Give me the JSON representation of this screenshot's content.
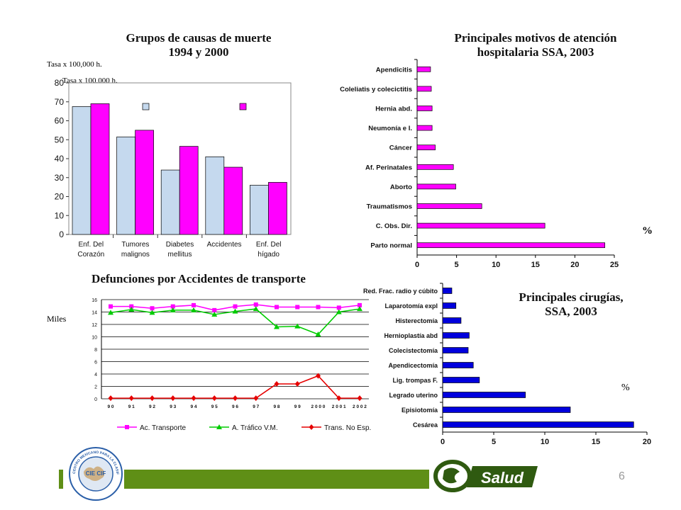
{
  "slide_number": "6",
  "brand": {
    "salud_label": "Salud",
    "seal_center": "CIE CIF",
    "seal_ring": "CENTRO MEXICANO PARA LA CLASIFICACIÓN DE ENFERMEDADES",
    "green": "#5f8f16",
    "dark_green": "#2f5a10"
  },
  "chart_data": [
    {
      "id": "causas",
      "type": "bar",
      "title_line1": "Grupos de causas de muerte",
      "title_line2": "1994 y 2000",
      "unit_label": "Tasa x 100,000 h.",
      "unit_label_dup": "Tasa x 100,000 h.",
      "categories": [
        [
          "Enf. Del",
          "Corazón"
        ],
        [
          "Tumores",
          "malignos"
        ],
        [
          "Diabetes",
          "mellitus"
        ],
        [
          "Accidentes",
          ""
        ],
        [
          "Enf. Del",
          "hígado"
        ]
      ],
      "series": [
        {
          "values": [
            67.5,
            51.5,
            34,
            41,
            26
          ],
          "color": "#c5d9ee"
        },
        {
          "values": [
            69,
            55,
            46.5,
            35.5,
            27.5
          ],
          "color": "#ff00ff"
        }
      ],
      "ylim": [
        0,
        80
      ],
      "yticks": [
        0,
        10,
        20,
        30,
        40,
        50,
        60,
        70,
        80
      ]
    },
    {
      "id": "motivos",
      "type": "bar",
      "orientation": "horizontal",
      "title_line1": "Principales motivos de atención",
      "title_line2": "hospitalaria SSA, 2003",
      "unit": "%",
      "categories": [
        "Apendicitis",
        "Coleliatis y colecictitis",
        "Hernia abd.",
        "Neumonía e I.",
        "Cáncer",
        "Af. Perinatales",
        "Aborto",
        "Traumatismos",
        "C. Obs. Dir.",
        "Parto normal"
      ],
      "values": [
        1.7,
        1.8,
        1.9,
        1.9,
        2.3,
        4.6,
        4.9,
        8.2,
        16.2,
        23.8
      ],
      "color": "#ff00ff",
      "xlim": [
        0,
        25
      ],
      "xticks": [
        0,
        5,
        10,
        15,
        20,
        25
      ]
    },
    {
      "id": "transporte",
      "type": "line",
      "title": "Defunciones por Accidentes de transporte",
      "unit_label": "Miles",
      "x": [
        "9 0",
        "9 1",
        "9 2",
        "9 3",
        "9 4",
        "9 5",
        "9 6",
        "9 7",
        "9 8",
        "9 9",
        "2 0 0 0",
        "2 0 0 1",
        "2 0 0 2"
      ],
      "series": [
        {
          "name": "Ac. Transporte",
          "values": [
            14.9,
            14.9,
            14.6,
            14.9,
            15.1,
            14.3,
            14.9,
            15.2,
            14.8,
            14.8,
            14.8,
            14.7,
            15.1
          ],
          "color": "#ff00ff",
          "marker": "square"
        },
        {
          "name": "A. Tráfico V.M.",
          "values": [
            13.9,
            14.4,
            13.9,
            14.3,
            14.3,
            13.6,
            14.1,
            14.5,
            11.6,
            11.7,
            10.4,
            14.0,
            14.5
          ],
          "color": "#00cc00",
          "marker": "triangle"
        },
        {
          "name": "Trans. No Esp.",
          "values": [
            0.1,
            0.1,
            0.1,
            0.1,
            0.1,
            0.1,
            0.1,
            0.1,
            2.4,
            2.4,
            3.7,
            0.1,
            0.1
          ],
          "color": "#e60000",
          "marker": "diamond"
        }
      ],
      "ylim": [
        0,
        16
      ],
      "yticks": [
        0,
        2,
        4,
        6,
        8,
        10,
        12,
        14,
        16
      ],
      "grid": true,
      "legend": "bottom"
    },
    {
      "id": "cirugias",
      "type": "bar",
      "orientation": "horizontal",
      "title_line1": "Principales cirugías,",
      "title_line2": "SSA, 2003",
      "unit": "%",
      "categories": [
        "Red.  Frac. radio y cúbito",
        "Laparotomía  expl",
        "Histerectomía",
        "Hernioplastía abd",
        "Colecistectomía",
        "Apendicectomía",
        "Lig. trompas F.",
        "Legrado uterino",
        "Episiotomía",
        "Cesárea"
      ],
      "values": [
        0.9,
        1.3,
        1.8,
        2.6,
        2.5,
        3.0,
        3.6,
        8.1,
        12.5,
        18.7
      ],
      "color": "#0000dd",
      "xlim": [
        0,
        20
      ],
      "xticks": [
        0,
        5,
        10,
        15,
        20
      ]
    }
  ]
}
